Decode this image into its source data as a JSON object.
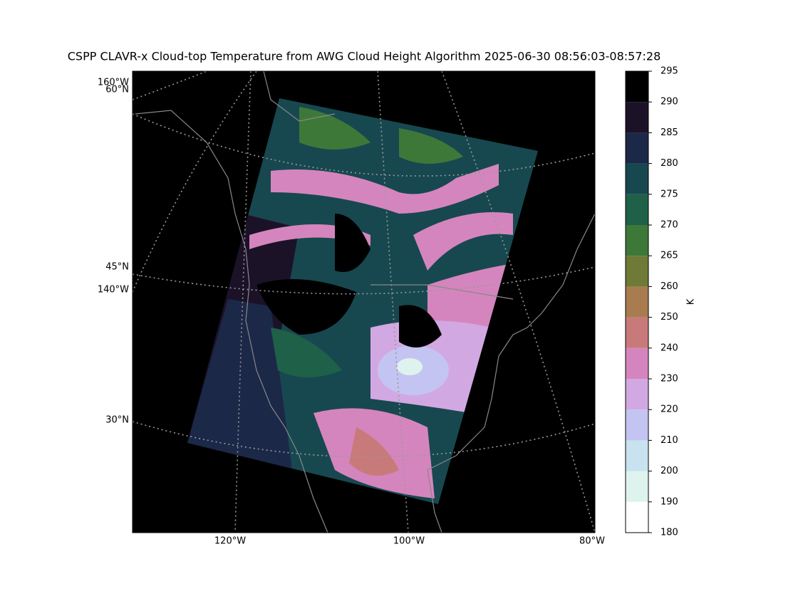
{
  "title": "CSPP CLAVR-x Cloud-top Temperature from AWG Cloud Height Algorithm 2025-06-30 08:56:03-08:57:28",
  "map": {
    "labels": [
      "160°W",
      "60°N",
      "45°N",
      "140°W",
      "30°N",
      "120°W",
      "100°W",
      "80°W"
    ]
  },
  "colorbar": {
    "label": "K",
    "levels": [
      180,
      190,
      200,
      210,
      220,
      230,
      240,
      250,
      260,
      265,
      270,
      275,
      280,
      285,
      290,
      295
    ],
    "colors": [
      "#ffffff",
      "#dff3ee",
      "#c8e2f0",
      "#c4c4f2",
      "#d2a8e2",
      "#d585bd",
      "#c87a7a",
      "#a87c4e",
      "#6e7a36",
      "#3e7838",
      "#1e6048",
      "#174850",
      "#1c2848",
      "#1c1228",
      "#000000"
    ]
  }
}
